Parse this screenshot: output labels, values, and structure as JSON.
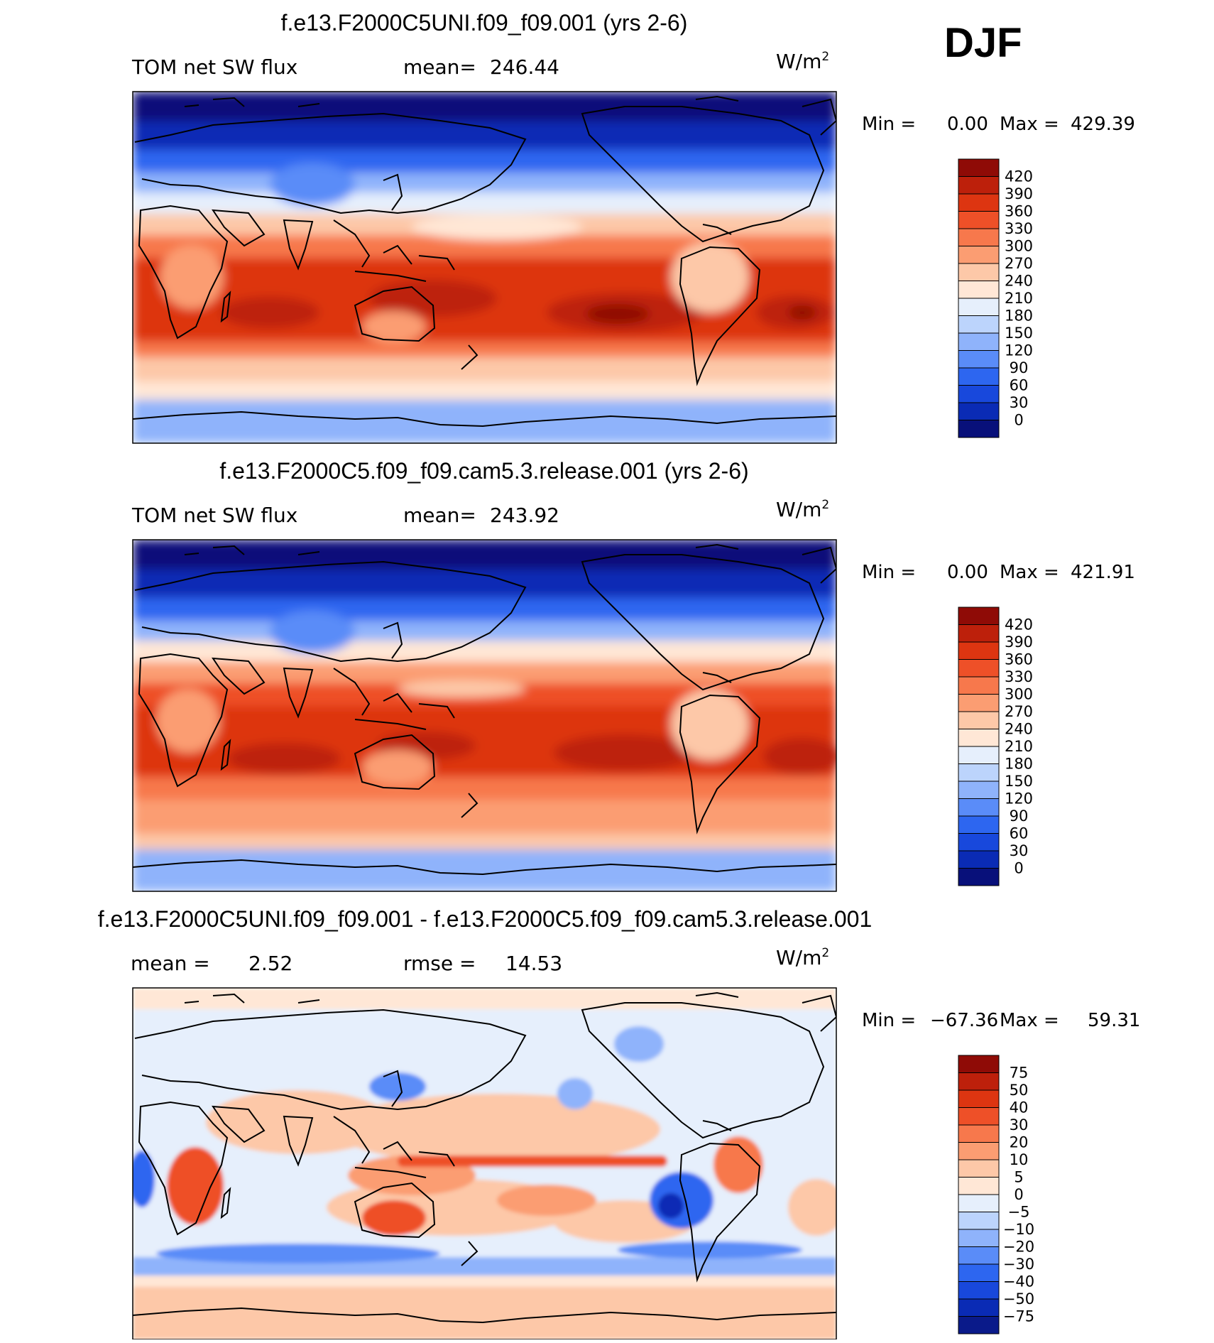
{
  "season": "DJF",
  "colors": {
    "abs_scale": [
      "#08107a",
      "#0a2bb5",
      "#1848dc",
      "#2d66f0",
      "#5a8cf8",
      "#8fb3fb",
      "#bcd4fc",
      "#e6effc",
      "#ffe7d6",
      "#fdc8a8",
      "#fb9d72",
      "#f7784c",
      "#ee5028",
      "#dd3511",
      "#bd200b",
      "#8f0b06"
    ],
    "diff_scale": [
      "#0a1a8a",
      "#0a2bb5",
      "#1848dc",
      "#2d66f0",
      "#5a8cf8",
      "#8fb3fb",
      "#bcd4fc",
      "#e6effc",
      "#ffe7d6",
      "#fdc8a8",
      "#fb9d72",
      "#f7784c",
      "#ee5028",
      "#dd3511",
      "#bd200b",
      "#8f0b06"
    ],
    "land_outline": "#000000"
  },
  "chart_data": [
    {
      "type": "heatmap",
      "title": "f.e13.F2000C5UNI.f09_f09.001 (yrs 2-6)",
      "left_label": "TOM net SW flux",
      "stat_label": "mean=",
      "stat_value": "246.44",
      "units": "W/m",
      "units_exp": "2",
      "min_label": "Min =",
      "min_value": "0.00",
      "max_label": "Max =",
      "max_value": "429.39",
      "colorbar_ticks": [
        "420",
        "390",
        "360",
        "330",
        "300",
        "270",
        "240",
        "210",
        "180",
        "150",
        "120",
        "90",
        "60",
        "30",
        "0"
      ],
      "lon_range": [
        0,
        360
      ],
      "lat_range": [
        -90,
        90
      ]
    },
    {
      "type": "heatmap",
      "title": "f.e13.F2000C5.f09_f09.cam5.3.release.001 (yrs 2-6)",
      "left_label": "TOM net SW flux",
      "stat_label": "mean=",
      "stat_value": "243.92",
      "units": "W/m",
      "units_exp": "2",
      "min_label": "Min =",
      "min_value": "0.00",
      "max_label": "Max =",
      "max_value": "421.91",
      "colorbar_ticks": [
        "420",
        "390",
        "360",
        "330",
        "300",
        "270",
        "240",
        "210",
        "180",
        "150",
        "120",
        "90",
        "60",
        "30",
        "0"
      ],
      "lon_range": [
        0,
        360
      ],
      "lat_range": [
        -90,
        90
      ]
    },
    {
      "type": "heatmap",
      "title": "f.e13.F2000C5UNI.f09_f09.001 - f.e13.F2000C5.f09_f09.cam5.3.release.001",
      "mean_label": "mean =",
      "mean_value": "2.52",
      "rmse_label": "rmse =",
      "rmse_value": "14.53",
      "units": "W/m",
      "units_exp": "2",
      "min_label": "Min =",
      "min_value": "−67.36",
      "max_label": "Max =",
      "max_value": "59.31",
      "colorbar_ticks": [
        "75",
        "50",
        "40",
        "30",
        "20",
        "10",
        "5",
        "0",
        "−5",
        "−10",
        "−20",
        "−30",
        "−40",
        "−50",
        "−75"
      ],
      "lon_range": [
        0,
        360
      ],
      "lat_range": [
        -90,
        90
      ]
    }
  ]
}
